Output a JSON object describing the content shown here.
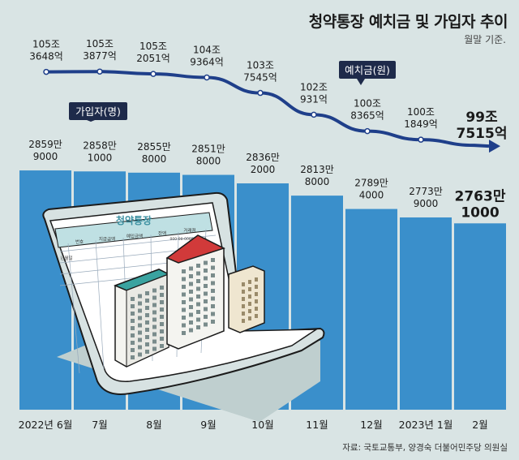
{
  "title": "청약통장 예치금 및 가입자 추이",
  "subtitle": "월말 기준.",
  "source": "자료: 국토교통부, 양경숙 더불어민주당 의원실",
  "colors": {
    "background": "#d9e4e4",
    "bar": "#3a8fcb",
    "line": "#1f3f8a",
    "label_box": "#1e2a4a"
  },
  "chart_data": [
    {
      "type": "line",
      "name": "예치금(원)",
      "categories": [
        "2022년 6월",
        "7월",
        "8월",
        "9월",
        "10월",
        "11월",
        "12월",
        "2023년 1월",
        "2월"
      ],
      "series": [
        {
          "name": "예치금(원)",
          "values": [
            1053648,
            1053877,
            1052051,
            1049364,
            1037545,
            1020931,
            1008365,
            1001849,
            997515
          ]
        }
      ],
      "labels": [
        [
          "105조",
          "3648억"
        ],
        [
          "105조",
          "3877억"
        ],
        [
          "105조",
          "2051억"
        ],
        [
          "104조",
          "9364억"
        ],
        [
          "103조",
          "7545억"
        ],
        [
          "102조",
          "931억"
        ],
        [
          "100조",
          "8365억"
        ],
        [
          "100조",
          "1849억"
        ],
        [
          "99조",
          "7515억"
        ]
      ]
    },
    {
      "type": "bar",
      "name": "가입자(명)",
      "categories": [
        "2022년 6월",
        "7월",
        "8월",
        "9월",
        "10월",
        "11월",
        "12월",
        "2023년 1월",
        "2월"
      ],
      "series": [
        {
          "name": "가입자(명)",
          "values": [
            28599000,
            28581000,
            28558000,
            28518000,
            28362000,
            28138000,
            27894000,
            27739000,
            27631000
          ]
        }
      ],
      "labels": [
        [
          "2859만",
          "9000"
        ],
        [
          "2858만",
          "1000"
        ],
        [
          "2855만",
          "8000"
        ],
        [
          "2851만",
          "8000"
        ],
        [
          "2836만",
          "2000"
        ],
        [
          "2813만",
          "8000"
        ],
        [
          "2789만",
          "4000"
        ],
        [
          "2773만",
          "9000"
        ],
        [
          "2763만",
          "1000"
        ]
      ]
    }
  ],
  "illustration": {
    "bankbook_title": "청약통장",
    "form_headers": [
      "번호",
      "지급금액",
      "예입금액",
      "잔액",
      "거래점"
    ],
    "form_row_label": "년월일",
    "form_number": "000-00-000000-000"
  }
}
